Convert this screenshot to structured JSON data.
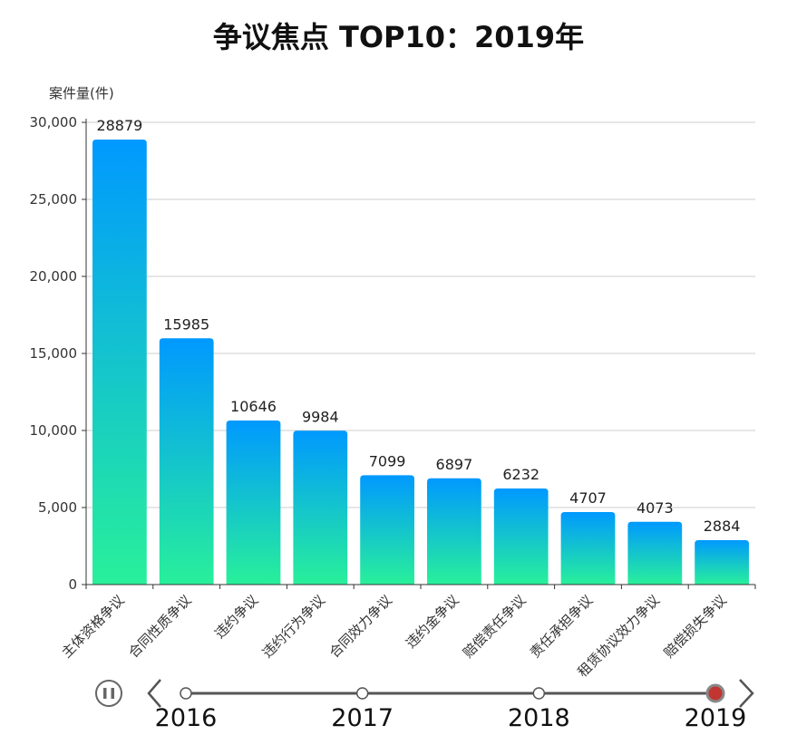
{
  "chart_data": {
    "type": "bar",
    "title": "争议焦点 TOP10：2019年",
    "ylabel": "案件量(件)",
    "ylim": [
      0,
      30000
    ],
    "yticks": [
      "0",
      "5,000",
      "10,000",
      "15,000",
      "20,000",
      "25,000",
      "30,000"
    ],
    "categories": [
      "主体资格争议",
      "合同性质争议",
      "违约争议",
      "违约行为争议",
      "合同效力争议",
      "违约金争议",
      "赔偿责任争议",
      "责任承担争议",
      "租赁协议效力争议",
      "赔偿损失争议"
    ],
    "values": [
      28879,
      15985,
      10646,
      9984,
      7099,
      6897,
      6232,
      4707,
      4073,
      2884
    ],
    "grid": true,
    "colors": {
      "bar_top": "#0099ff",
      "bar_bottom": "#28f09a",
      "grid": "#cccccc",
      "axis": "#333333"
    }
  },
  "timeline": {
    "years": [
      "2016",
      "2017",
      "2018",
      "2019"
    ],
    "current_index": 3,
    "play_state": "paused",
    "colors": {
      "active": "#c23531",
      "line": "#555555"
    }
  }
}
